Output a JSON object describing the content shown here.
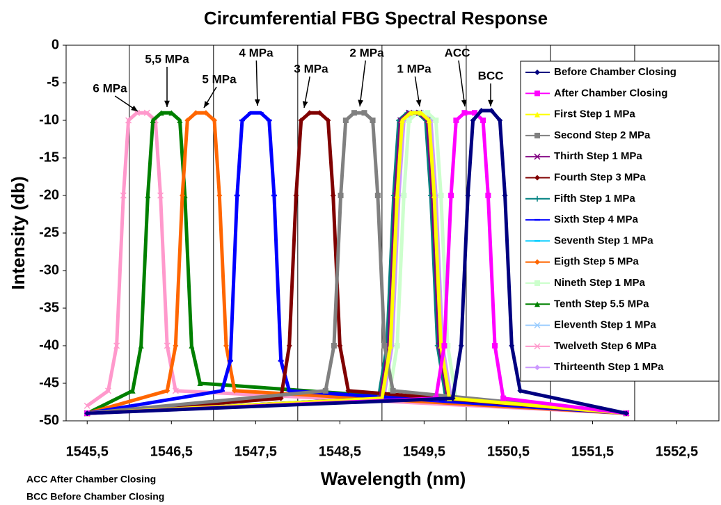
{
  "chart_data": {
    "type": "line",
    "title": "Circumferential FBG Spectral Response",
    "x_label": "Wavelength (nm)",
    "y_label": "Intensity (db)",
    "xlim": [
      1545.25,
      1553
    ],
    "ylim": [
      -50,
      0
    ],
    "xticks": [
      {
        "value": 1545.5,
        "label": "1545,5"
      },
      {
        "value": 1546.5,
        "label": "1546,5"
      },
      {
        "value": 1547.5,
        "label": "1547,5"
      },
      {
        "value": 1548.5,
        "label": "1548,5"
      },
      {
        "value": 1549.5,
        "label": "1549,5"
      },
      {
        "value": 1550.5,
        "label": "1550,5"
      },
      {
        "value": 1551.5,
        "label": "1551,5"
      },
      {
        "value": 1552.5,
        "label": "1552,5"
      }
    ],
    "xgrid": [
      1546,
      1547,
      1548,
      1549,
      1550,
      1551,
      1552
    ],
    "yticks": [
      0,
      -5,
      -10,
      -15,
      -20,
      -25,
      -30,
      -35,
      -40,
      -45,
      -50
    ],
    "annotations": [
      "6 MPa",
      "5,5 MPa",
      "5 MPa",
      "4 MPa",
      "3 MPa",
      "2 MPa",
      "1 MPa",
      "ACC",
      "BCC"
    ],
    "notes": [
      "ACC After Chamber Closing",
      "BCC Before Chamber Closing"
    ],
    "series": [
      {
        "name": "Before Chamber Closing",
        "color": "#000080",
        "marker": "diamond",
        "x": [
          1545.5,
          1549.84,
          1549.94,
          1550.02,
          1550.08,
          1550.18,
          1550.3,
          1550.4,
          1550.46,
          1550.54,
          1550.64,
          1551.9
        ],
        "values": [
          -49,
          -47,
          -40,
          -20,
          -10,
          -8.7,
          -8.7,
          -10,
          -20,
          -40,
          -46,
          -49
        ]
      },
      {
        "name": "After Chamber Closing",
        "color": "#ff00ff",
        "marker": "square",
        "x": [
          1545.5,
          1549.64,
          1549.74,
          1549.82,
          1549.88,
          1549.98,
          1550.1,
          1550.2,
          1550.26,
          1550.34,
          1550.44,
          1551.9
        ],
        "values": [
          -49,
          -47,
          -40,
          -20,
          -10,
          -9,
          -9,
          -10,
          -20,
          -40,
          -47,
          -49
        ]
      },
      {
        "name": "First Step 1 MPa",
        "color": "#ffff00",
        "marker": "triangle",
        "x": [
          1545.5,
          1549.0,
          1549.1,
          1549.18,
          1549.24,
          1549.34,
          1549.46,
          1549.56,
          1549.62,
          1549.7,
          1549.8,
          1551.9
        ],
        "values": [
          -49,
          -47,
          -40,
          -20,
          -10,
          -9,
          -9,
          -10,
          -20,
          -40,
          -47,
          -49
        ]
      },
      {
        "name": "Second Step 2 MPa",
        "color": "#808080",
        "marker": "square",
        "x": [
          1545.5,
          1548.33,
          1548.43,
          1548.51,
          1548.57,
          1548.67,
          1548.79,
          1548.89,
          1548.95,
          1549.03,
          1549.13,
          1551.9
        ],
        "values": [
          -49,
          -46,
          -40,
          -20,
          -10,
          -9,
          -9,
          -10,
          -20,
          -40,
          -46,
          -49
        ]
      },
      {
        "name": "Thirth Step 1 MPa",
        "color": "#800080",
        "marker": "x",
        "x": [
          1545.5,
          1548.98,
          1549.08,
          1549.16,
          1549.22,
          1549.32,
          1549.44,
          1549.54,
          1549.6,
          1549.68,
          1549.78,
          1551.9
        ],
        "values": [
          -49,
          -47,
          -40,
          -20,
          -10,
          -9,
          -9,
          -10,
          -20,
          -40,
          -47,
          -49
        ]
      },
      {
        "name": "Fourth Step 3 MPa",
        "color": "#800000",
        "marker": "diamond",
        "x": [
          1545.5,
          1547.8,
          1547.9,
          1547.98,
          1548.04,
          1548.14,
          1548.26,
          1548.36,
          1548.42,
          1548.5,
          1548.6,
          1551.9
        ],
        "values": [
          -49,
          -47,
          -40,
          -20,
          -10,
          -9,
          -9,
          -10,
          -20,
          -40,
          -46,
          -49
        ]
      },
      {
        "name": "Fifth Step 1 MPa",
        "color": "#008080",
        "marker": "plus",
        "x": [
          1545.5,
          1548.96,
          1549.06,
          1549.14,
          1549.2,
          1549.3,
          1549.42,
          1549.52,
          1549.58,
          1549.66,
          1549.76,
          1551.9
        ],
        "values": [
          -49,
          -47,
          -40,
          -20,
          -10,
          -9,
          -9,
          -10,
          -20,
          -40,
          -47,
          -49
        ]
      },
      {
        "name": "Sixth Step 4 MPa",
        "color": "#0000ff",
        "marker": "dash",
        "x": [
          1545.5,
          1547.1,
          1547.2,
          1547.28,
          1547.34,
          1547.44,
          1547.56,
          1547.66,
          1547.72,
          1547.8,
          1547.9,
          1551.9
        ],
        "values": [
          -49,
          -46,
          -42,
          -20,
          -10,
          -9,
          -9,
          -10,
          -20,
          -42,
          -46,
          -49
        ]
      },
      {
        "name": "Seventh Step 1 MPa",
        "color": "#00ccff",
        "marker": "dash",
        "x": [
          1545.5,
          1548.98,
          1549.08,
          1549.16,
          1549.22,
          1549.32,
          1549.44,
          1549.54,
          1549.6,
          1549.68,
          1549.78,
          1551.9
        ],
        "values": [
          -49,
          -47,
          -40,
          -20,
          -10,
          -9,
          -9,
          -10,
          -20,
          -40,
          -47,
          -49
        ]
      },
      {
        "name": "Eigth Step 5 MPa",
        "color": "#ff6600",
        "marker": "diamond",
        "x": [
          1545.5,
          1546.45,
          1546.55,
          1546.63,
          1546.69,
          1546.79,
          1546.91,
          1547.01,
          1547.07,
          1547.15,
          1547.25,
          1551.9
        ],
        "values": [
          -49,
          -46,
          -40,
          -20,
          -10,
          -9,
          -9,
          -10,
          -20,
          -40,
          -46,
          -49
        ]
      },
      {
        "name": "Nineth Step 1 MPa",
        "color": "#ccffcc",
        "marker": "square",
        "x": [
          1545.5,
          1549.08,
          1549.18,
          1549.26,
          1549.32,
          1549.42,
          1549.54,
          1549.64,
          1549.7,
          1549.78,
          1549.88,
          1551.9
        ],
        "values": [
          -49,
          -47,
          -40,
          -20,
          -10,
          -9,
          -9,
          -10,
          -20,
          -40,
          -47,
          -49
        ]
      },
      {
        "name": "Tenth Step 5.5 MPa",
        "color": "#008000",
        "marker": "triangle",
        "x": [
          1545.5,
          1546.04,
          1546.14,
          1546.22,
          1546.28,
          1546.38,
          1546.5,
          1546.6,
          1546.66,
          1546.74,
          1546.84,
          1551.9
        ],
        "values": [
          -49,
          -46,
          -40,
          -20,
          -10,
          -9,
          -9,
          -10,
          -20,
          -40,
          -45,
          -49
        ]
      },
      {
        "name": "Eleventh Step 1 MPa",
        "color": "#99ccff",
        "marker": "x",
        "x": [
          1545.5,
          1549.0,
          1549.1,
          1549.18,
          1549.24,
          1549.34,
          1549.46,
          1549.56,
          1549.62,
          1549.7,
          1549.8,
          1551.9
        ],
        "values": [
          -49,
          -47,
          -40,
          -20,
          -10,
          -9,
          -9,
          -10,
          -20,
          -40,
          -47,
          -49
        ]
      },
      {
        "name": "Twelveth Step 6 MPa",
        "color": "#ff99cc",
        "marker": "x",
        "x": [
          1545.5,
          1545.75,
          1545.85,
          1545.93,
          1545.99,
          1546.09,
          1546.21,
          1546.31,
          1546.37,
          1546.45,
          1546.55,
          1551.9
        ],
        "values": [
          -48,
          -46,
          -40,
          -20,
          -10,
          -9,
          -9,
          -10,
          -20,
          -40,
          -46,
          -49
        ]
      },
      {
        "name": "Thirteenth Step 1 MPa",
        "color": "#cc99ff",
        "marker": "diamond",
        "x": [
          1545.5,
          1549.02,
          1549.12,
          1549.2,
          1549.26,
          1549.36,
          1549.48,
          1549.58,
          1549.64,
          1549.72,
          1549.82,
          1551.9
        ],
        "values": [
          -49,
          -47,
          -40,
          -20,
          -10,
          -9,
          -9,
          -10,
          -20,
          -40,
          -47,
          -49
        ]
      }
    ]
  }
}
